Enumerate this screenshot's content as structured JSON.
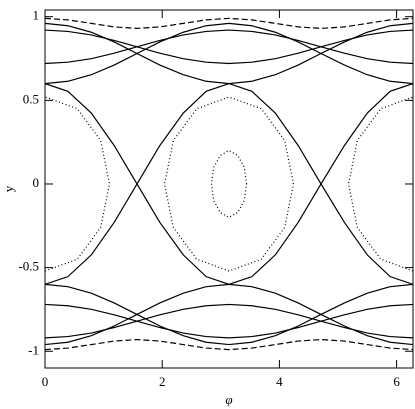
{
  "chart_data": {
    "type": "line",
    "xlabel": "φ",
    "ylabel": "y",
    "xlim": [
      0,
      6.28
    ],
    "ylim": [
      -1.1,
      1.04
    ],
    "xticks": [
      0,
      2,
      4,
      6
    ],
    "yticks": [
      -1,
      -0.5,
      0,
      0.5,
      1
    ],
    "color": "#000000",
    "x": [
      0,
      0.39,
      0.79,
      1.18,
      1.57,
      1.96,
      2.36,
      2.75,
      3.14,
      3.53,
      3.93,
      4.32,
      4.71,
      5.11,
      5.5,
      5.89,
      6.28
    ],
    "series": [
      {
        "dash": "solid",
        "values": [
          0.6,
          0.554,
          0.424,
          0.23,
          0,
          -0.23,
          -0.424,
          -0.554,
          -0.6,
          -0.554,
          -0.424,
          -0.23,
          0,
          0.23,
          0.424,
          0.554,
          0.6
        ]
      },
      {
        "dash": "solid",
        "values": [
          -0.6,
          -0.554,
          -0.424,
          -0.23,
          0,
          0.23,
          0.424,
          0.554,
          0.6,
          0.554,
          0.424,
          0.23,
          0,
          -0.23,
          -0.424,
          -0.554,
          -0.6
        ]
      },
      {
        "dash": "solid",
        "values": [
          0.96,
          0.946,
          0.907,
          0.849,
          0.78,
          0.711,
          0.653,
          0.614,
          0.6,
          0.614,
          0.653,
          0.711,
          0.78,
          0.849,
          0.907,
          0.946,
          0.96
        ]
      },
      {
        "dash": "solid",
        "values": [
          0.6,
          0.614,
          0.653,
          0.711,
          0.78,
          0.849,
          0.907,
          0.946,
          0.96,
          0.946,
          0.907,
          0.849,
          0.78,
          0.711,
          0.653,
          0.614,
          0.6
        ]
      },
      {
        "dash": "solid",
        "values": [
          -0.96,
          -0.946,
          -0.907,
          -0.849,
          -0.78,
          -0.711,
          -0.653,
          -0.614,
          -0.6,
          -0.614,
          -0.653,
          -0.711,
          -0.78,
          -0.849,
          -0.907,
          -0.946,
          -0.96
        ]
      },
      {
        "dash": "solid",
        "values": [
          -0.6,
          -0.614,
          -0.653,
          -0.711,
          -0.78,
          -0.849,
          -0.907,
          -0.946,
          -0.96,
          -0.946,
          -0.907,
          -0.849,
          -0.78,
          -0.711,
          -0.653,
          -0.614,
          -0.6
        ]
      },
      {
        "dash": "solid",
        "values": [
          0.92,
          0.912,
          0.891,
          0.858,
          0.82,
          0.782,
          0.749,
          0.728,
          0.72,
          0.728,
          0.749,
          0.782,
          0.82,
          0.858,
          0.891,
          0.912,
          0.92
        ]
      },
      {
        "dash": "solid",
        "values": [
          0.72,
          0.728,
          0.749,
          0.782,
          0.82,
          0.858,
          0.891,
          0.912,
          0.92,
          0.912,
          0.891,
          0.858,
          0.82,
          0.782,
          0.749,
          0.728,
          0.72
        ]
      },
      {
        "dash": "solid",
        "values": [
          -0.92,
          -0.912,
          -0.891,
          -0.858,
          -0.82,
          -0.782,
          -0.749,
          -0.728,
          -0.72,
          -0.728,
          -0.749,
          -0.782,
          -0.82,
          -0.858,
          -0.891,
          -0.912,
          -0.92
        ]
      },
      {
        "dash": "solid",
        "values": [
          -0.72,
          -0.728,
          -0.749,
          -0.782,
          -0.82,
          -0.858,
          -0.891,
          -0.912,
          -0.92,
          -0.912,
          -0.891,
          -0.858,
          -0.82,
          -0.782,
          -0.749,
          -0.728,
          -0.72
        ]
      },
      {
        "dash": "dashed",
        "values": [
          0.99,
          0.981,
          0.96,
          0.939,
          0.93,
          0.939,
          0.96,
          0.981,
          0.99,
          0.981,
          0.96,
          0.939,
          0.93,
          0.939,
          0.96,
          0.981,
          0.99
        ]
      },
      {
        "dash": "dashed",
        "values": [
          -0.99,
          -0.981,
          -0.96,
          -0.939,
          -0.93,
          -0.939,
          -0.96,
          -0.981,
          -0.99,
          -0.981,
          -0.96,
          -0.939,
          -0.93,
          -0.939,
          -0.96,
          -0.981,
          -0.99
        ]
      },
      {
        "dash": "dotted",
        "x": [
          4.24,
          4.09,
          3.69,
          3.14,
          2.59,
          2.19,
          2.04,
          2.19,
          2.59,
          3.14,
          3.69,
          4.09,
          4.24
        ],
        "values": [
          0,
          0.26,
          0.45,
          0.52,
          0.45,
          0.26,
          0,
          -0.26,
          -0.45,
          -0.52,
          -0.45,
          -0.26,
          0
        ]
      },
      {
        "dash": "dotted",
        "x": [
          3.44,
          3.4,
          3.29,
          3.14,
          2.99,
          2.88,
          2.84,
          2.88,
          2.99,
          3.14,
          3.29,
          3.4,
          3.44
        ],
        "values": [
          0,
          0.1,
          0.17,
          0.2,
          0.17,
          0.1,
          0,
          -0.1,
          -0.17,
          -0.2,
          -0.17,
          -0.1,
          0
        ]
      },
      {
        "dash": "dotted",
        "x": [
          0,
          0.55,
          0.95,
          1.1,
          0.95,
          0.55,
          0
        ],
        "values": [
          -0.52,
          -0.45,
          -0.26,
          0,
          0.26,
          0.45,
          0.52
        ]
      },
      {
        "dash": "dotted",
        "x": [
          6.28,
          5.73,
          5.33,
          5.18,
          5.33,
          5.73,
          6.28
        ],
        "values": [
          -0.52,
          -0.45,
          -0.26,
          0,
          0.26,
          0.45,
          0.52
        ]
      }
    ]
  }
}
